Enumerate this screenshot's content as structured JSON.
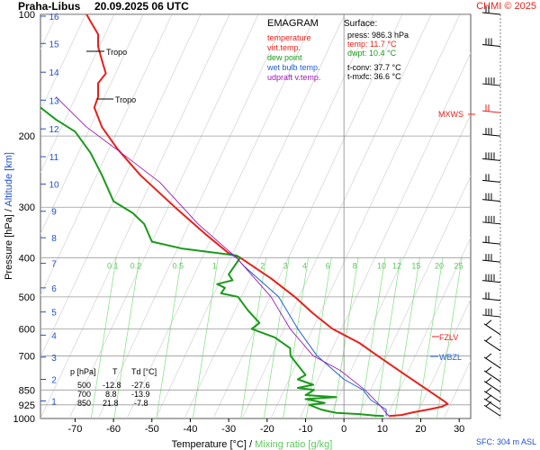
{
  "header": {
    "station": "Praha-Libus",
    "datetime": "20.09.2025 06 UTC",
    "credit": "CHMI © 2025"
  },
  "legend": {
    "title": "EMAGRAM",
    "items": [
      {
        "label": "temperature",
        "color": "#e8201a"
      },
      {
        "label": "virt.temp.",
        "color": "#e8201a"
      },
      {
        "label": "dew point",
        "color": "#1a9a1a"
      },
      {
        "label": "wet bulb temp.",
        "color": "#2060d0"
      },
      {
        "label": "udpraft v.temp.",
        "color": "#9a1ab0"
      }
    ]
  },
  "surface": {
    "title": "Surface:",
    "press": "press: 986.3 hPa",
    "temp": "temp: 11.7 °C",
    "dwpt": "dwpt: 10.4 °C",
    "tconv": "t-conv: 37.7 °C",
    "tmxfc": "t-mxfc: 36.6 °C"
  },
  "table": {
    "headers": [
      "p [hPa]",
      "T",
      "Td [°C]"
    ],
    "rows": [
      [
        "500",
        "-12.8",
        "-27.6"
      ],
      [
        "700",
        "8.8",
        "-13.9"
      ],
      [
        "850",
        "21.8",
        "-7.8"
      ]
    ]
  },
  "labels": {
    "tropo1": "Tropo",
    "tropo2": "Tropo",
    "mxws": "MXWS",
    "fzlv": "FZLV",
    "wbzl": "WBZL",
    "sfc": "SFC: 304 m ASL"
  },
  "axes": {
    "ylabel_left": "Pressure [hPa]",
    "ylabel_sep": " / ",
    "ylabel_right": "Altitude [km]",
    "xlabel_left": "Temperature [°C]",
    "xlabel_sep": " / ",
    "xlabel_right": "Mixing ratio [g/kg]"
  },
  "colors": {
    "temperature": "#e8201a",
    "dewpoint": "#1a9a1a",
    "wetbulb": "#2060d0",
    "parcel": "#9a1ab0",
    "mixing": "#7ee07e",
    "altitude": "#2050d0"
  },
  "chart_data": {
    "type": "line",
    "title": "EMAGRAM Praha-Libus 20.09.2025 06 UTC",
    "xlabel": "Temperature [°C] / Mixing ratio [g/kg]",
    "ylabel": "Pressure [hPa] / Altitude [km]",
    "xlim": [
      -79,
      33
    ],
    "ylim": [
      1000,
      100
    ],
    "x_ticks": [
      -70,
      -60,
      -50,
      -40,
      -30,
      -20,
      -10,
      0,
      10,
      20,
      30
    ],
    "p_ticks": [
      100,
      200,
      300,
      400,
      500,
      600,
      700,
      850,
      925,
      1000
    ],
    "p_grid": [
      100,
      200,
      300,
      400,
      500,
      600,
      700,
      850,
      925
    ],
    "alt_km": [
      1,
      2,
      3,
      4,
      5,
      6,
      7,
      8,
      9,
      10,
      11,
      12,
      13,
      14,
      15,
      16
    ],
    "alt_p": [
      905,
      800,
      705,
      622,
      545,
      475,
      413,
      357,
      307,
      263,
      225,
      192,
      163,
      139,
      118,
      101
    ],
    "mixing_ratio_labels": [
      "0.1",
      "0.2",
      "0.5",
      "1",
      "2",
      "3",
      "4",
      "6",
      "8",
      "10",
      "12",
      "15",
      "20",
      "25"
    ],
    "mixing_ratio_x": [
      -67,
      -61,
      -50,
      -40.5,
      -28,
      -22,
      -17,
      -11,
      -4,
      3,
      7,
      12,
      18,
      23
    ],
    "series": [
      {
        "name": "temperature",
        "color": "#e8201a",
        "points": [
          [
            11.7,
            986
          ],
          [
            15,
            980
          ],
          [
            18,
            965
          ],
          [
            22,
            950
          ],
          [
            25.5,
            935
          ],
          [
            27,
            920
          ],
          [
            26,
            905
          ],
          [
            21.8,
            850
          ],
          [
            16,
            780
          ],
          [
            8.8,
            700
          ],
          [
            4,
            650
          ],
          [
            -3,
            600
          ],
          [
            -8,
            550
          ],
          [
            -12.8,
            500
          ],
          [
            -19,
            450
          ],
          [
            -27,
            400
          ],
          [
            -30,
            390
          ],
          [
            -36,
            350
          ],
          [
            -44,
            300
          ],
          [
            -53,
            250
          ],
          [
            -59,
            215
          ],
          [
            -63,
            190
          ],
          [
            -65,
            170
          ],
          [
            -64,
            160
          ],
          [
            -64,
            148
          ],
          [
            -62,
            140
          ],
          [
            -63,
            130
          ],
          [
            -64,
            120
          ],
          [
            -64,
            112
          ],
          [
            -66,
            104
          ],
          [
            -67,
            100
          ]
        ]
      },
      {
        "name": "dew point",
        "color": "#1a9a1a",
        "points": [
          [
            10.4,
            986
          ],
          [
            8,
            983
          ],
          [
            4,
            975
          ],
          [
            -2,
            968
          ],
          [
            -4,
            960
          ],
          [
            -6,
            950
          ],
          [
            -9,
            925
          ],
          [
            -5,
            915
          ],
          [
            -10,
            895
          ],
          [
            -2,
            885
          ],
          [
            -10,
            875
          ],
          [
            -7.8,
            850
          ],
          [
            -12,
            840
          ],
          [
            -8,
            825
          ],
          [
            -12,
            800
          ],
          [
            -10,
            780
          ],
          [
            -13.9,
            700
          ],
          [
            -14,
            670
          ],
          [
            -18,
            630
          ],
          [
            -24,
            600
          ],
          [
            -22,
            580
          ],
          [
            -25,
            540
          ],
          [
            -27.6,
            500
          ],
          [
            -32,
            490
          ],
          [
            -31,
            475
          ],
          [
            -33,
            465
          ],
          [
            -29,
            455
          ],
          [
            -30,
            440
          ],
          [
            -27,
            400
          ],
          [
            -28,
            395
          ],
          [
            -42,
            380
          ],
          [
            -50,
            365
          ],
          [
            -52,
            330
          ],
          [
            -55,
            310
          ],
          [
            -60,
            290
          ],
          [
            -63,
            250
          ],
          [
            -66,
            220
          ],
          [
            -70,
            195
          ],
          [
            -75,
            182
          ],
          [
            -79,
            170
          ]
        ]
      },
      {
        "name": "wet bulb temp.",
        "color": "#2060d0",
        "points": [
          [
            11,
            986
          ],
          [
            11,
            950
          ],
          [
            7,
            900
          ],
          [
            5,
            850
          ],
          [
            0,
            800
          ],
          [
            -7,
            700
          ],
          [
            -12,
            600
          ],
          [
            -17,
            500
          ],
          [
            -26,
            420
          ],
          [
            -28,
            400
          ],
          [
            -30,
            390
          ]
        ]
      },
      {
        "name": "udpraft v.temp.",
        "color": "#9a1ab0",
        "points": [
          [
            11.7,
            986
          ],
          [
            9,
            920
          ],
          [
            5.5,
            850
          ],
          [
            -1,
            760
          ],
          [
            -8,
            700
          ],
          [
            -14,
            600
          ],
          [
            -19,
            500
          ],
          [
            -28,
            400
          ],
          [
            -38,
            330
          ],
          [
            -48,
            260
          ],
          [
            -58,
            220
          ],
          [
            -67,
            190
          ],
          [
            -75,
            160
          ]
        ]
      }
    ],
    "wind_levels_hpa": [
      100,
      120,
      150,
      175,
      200,
      230,
      260,
      290,
      330,
      370,
      410,
      460,
      510,
      560,
      620,
      680,
      750,
      810,
      860,
      910,
      950,
      986
    ],
    "height_markers": [
      {
        "name": "Tropo",
        "pressure": 130
      },
      {
        "name": "Tropo",
        "pressure": 174
      },
      {
        "name": "MXWS",
        "pressure": 178
      },
      {
        "name": "FZLV",
        "pressure": 625
      },
      {
        "name": "WBZL",
        "pressure": 720
      }
    ]
  }
}
